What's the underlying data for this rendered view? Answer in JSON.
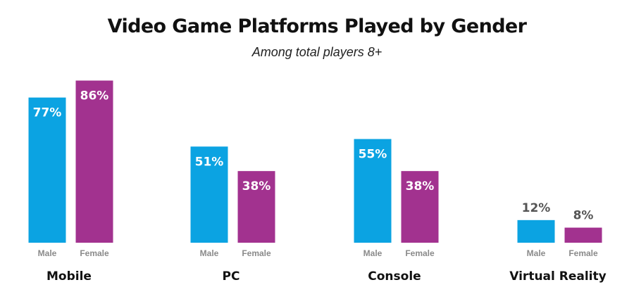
{
  "chart_data": {
    "type": "bar",
    "title": "Video Game Platforms Played by Gender",
    "subtitle": "Among total players 8+",
    "categories": [
      "Mobile",
      "PC",
      "Console",
      "Virtual Reality"
    ],
    "series": [
      {
        "name": "Male",
        "color": "#0ba3e2",
        "values": [
          77,
          51,
          55,
          12
        ],
        "value_labels": [
          "77%",
          "51%",
          "55%",
          "12%"
        ]
      },
      {
        "name": "Female",
        "color": "#a2328f",
        "values": [
          86,
          38,
          38,
          8
        ],
        "value_labels": [
          "86%",
          "38%",
          "38%",
          "8%"
        ]
      }
    ],
    "ylim": [
      0,
      100
    ],
    "grid": false,
    "legend": "none",
    "value_label_color_inside": "#ffffff",
    "value_label_color_outside": "#555555"
  }
}
